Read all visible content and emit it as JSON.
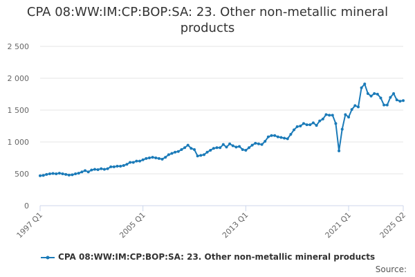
{
  "chart_data": {
    "type": "line",
    "title": "CPA 08:WW:IM:CP:BOP:SA: 23. Other non-metallic mineral products",
    "source": "Source:",
    "categories": [
      "1997 Q1",
      null,
      null,
      null,
      null,
      null,
      null,
      null,
      null,
      null,
      null,
      null,
      null,
      null,
      null,
      null,
      null,
      null,
      null,
      null,
      null,
      null,
      null,
      null,
      null,
      null,
      null,
      null,
      null,
      null,
      null,
      null,
      "2005 Q1",
      null,
      null,
      null,
      null,
      null,
      null,
      null,
      null,
      null,
      null,
      null,
      null,
      null,
      null,
      null,
      null,
      null,
      null,
      null,
      null,
      null,
      null,
      null,
      null,
      null,
      null,
      null,
      null,
      null,
      null,
      null,
      "2013 Q1",
      null,
      null,
      null,
      null,
      null,
      null,
      null,
      null,
      null,
      null,
      null,
      null,
      null,
      null,
      null,
      null,
      null,
      null,
      null,
      null,
      null,
      null,
      null,
      null,
      null,
      null,
      null,
      null,
      null,
      null,
      null,
      "2021 Q1",
      null,
      null,
      null,
      null,
      null,
      null,
      null,
      null,
      null,
      null,
      null,
      null,
      null,
      null,
      null,
      null,
      "2025 Q2"
    ],
    "series": [
      {
        "name": "CPA 08:WW:IM:CP:BOP:SA: 23. Other non-metallic mineral products",
        "color": "#1a7ab8",
        "values": [
          470,
          475,
          490,
          500,
          505,
          500,
          510,
          500,
          490,
          480,
          485,
          500,
          510,
          530,
          550,
          530,
          560,
          570,
          565,
          580,
          570,
          580,
          610,
          610,
          620,
          620,
          630,
          650,
          680,
          680,
          700,
          700,
          720,
          740,
          750,
          760,
          750,
          740,
          730,
          760,
          800,
          820,
          840,
          850,
          880,
          910,
          950,
          900,
          880,
          780,
          790,
          800,
          840,
          870,
          900,
          910,
          910,
          960,
          920,
          970,
          940,
          920,
          930,
          880,
          870,
          910,
          950,
          980,
          970,
          960,
          1010,
          1080,
          1100,
          1100,
          1080,
          1070,
          1060,
          1050,
          1120,
          1190,
          1240,
          1250,
          1290,
          1270,
          1270,
          1300,
          1260,
          1330,
          1360,
          1430,
          1420,
          1420,
          1290,
          860,
          1200,
          1430,
          1390,
          1510,
          1570,
          1550,
          1850,
          1910,
          1760,
          1720,
          1760,
          1750,
          1690,
          1580,
          1580,
          1700,
          1760,
          1660,
          1640,
          1650
        ]
      }
    ],
    "ylim": [
      0,
      2500
    ],
    "yticks": [
      0,
      500,
      {
        "value": 1000,
        "label": "1 000"
      },
      {
        "value": 1500,
        "label": "1 500"
      },
      {
        "value": 2000,
        "label": "2 000"
      },
      {
        "value": 2500,
        "label": "2 500"
      }
    ],
    "grid": true
  }
}
